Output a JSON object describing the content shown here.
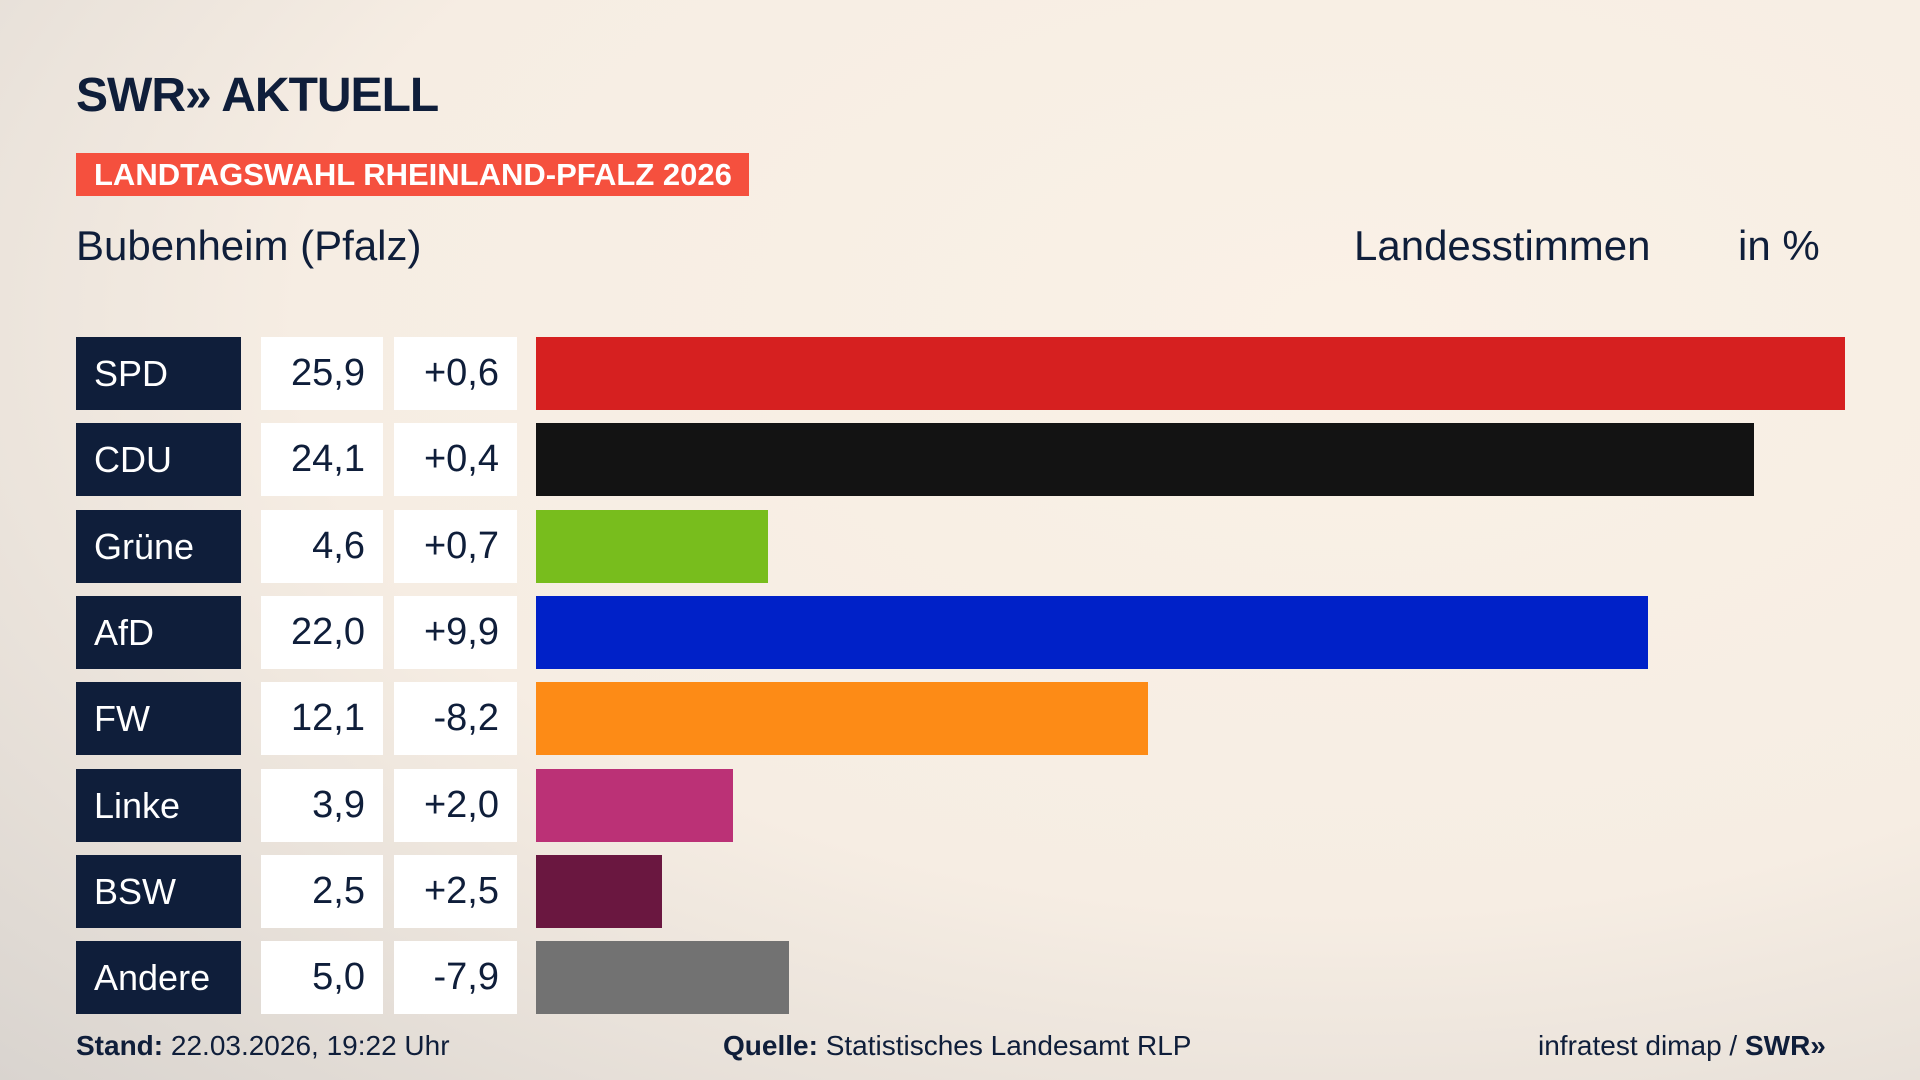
{
  "logo": "SWR» AKTUELL",
  "banner": "LANDTAGSWAHL RHEINLAND-PFALZ 2026",
  "location": "Bubenheim (Pfalz)",
  "measure": "Landesstimmen",
  "unit": "in %",
  "footer": {
    "stand_label": "Stand:",
    "stand": "22.03.2026, 19:22 Uhr",
    "source_label": "Quelle:",
    "source": "Statistisches Landesamt RLP",
    "credit": "infratest dimap / ",
    "credit_brand": "SWR»"
  },
  "chart_data": {
    "type": "bar",
    "title": "Landesstimmen in %",
    "categories": [
      "SPD",
      "CDU",
      "Grüne",
      "AfD",
      "FW",
      "Linke",
      "BSW",
      "Andere"
    ],
    "values": [
      25.9,
      24.1,
      4.6,
      22.0,
      12.1,
      3.9,
      2.5,
      5.0
    ],
    "value_labels": [
      "25,9",
      "24,1",
      "4,6",
      "22,0",
      "12,1",
      "3,9",
      "2,5",
      "5,0"
    ],
    "diff_labels": [
      "+0,6",
      "+0,4",
      "+0,7",
      "+9,9",
      "-8,2",
      "+2,0",
      "+2,5",
      "-7,9"
    ],
    "colors": [
      "#d62020",
      "#131313",
      "#78bd1d",
      "#0021c8",
      "#fd8b16",
      "#bb3176",
      "#6a1740",
      "#727272"
    ]
  }
}
